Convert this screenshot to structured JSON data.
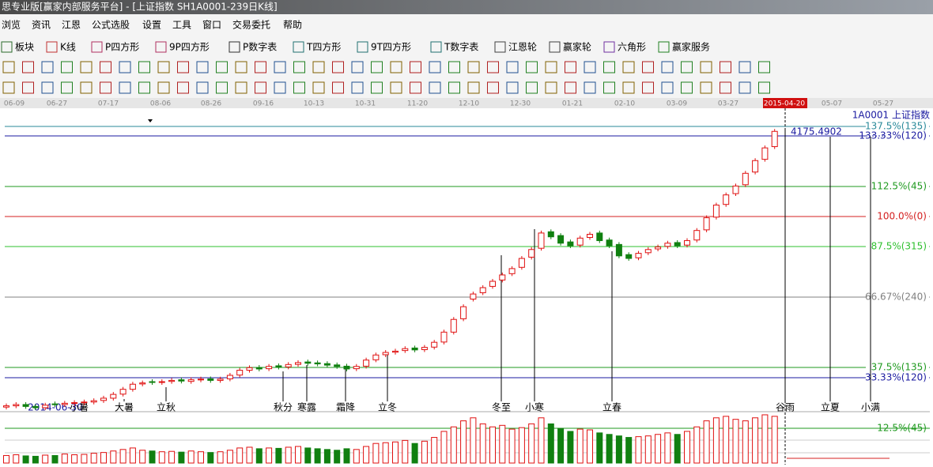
{
  "window": {
    "title": "思专业版[赢家内部服务平台] - [上证指数  SH1A0001-239日K线]"
  },
  "menu": [
    "浏览",
    "资讯",
    "江恩",
    "公式选股",
    "设置",
    "工具",
    "窗口",
    "交易委托",
    "帮助"
  ],
  "toolbar": [
    "板块",
    "K线",
    "P四方形",
    "9P四方形",
    "P数字表",
    "T四方形",
    "9T四方形",
    "T数字表",
    "江恩轮",
    "赢家轮",
    "六角形",
    "赢家服务"
  ],
  "dates": [
    "06-09",
    "06-27",
    "07-17",
    "08-06",
    "08-26",
    "09-16",
    "10-13",
    "10-31",
    "11-20",
    "12-10",
    "12-30",
    "01-21",
    "02-10",
    "03-09",
    "03-27",
    "2015-04-20",
    "05-07",
    "05-27"
  ],
  "symbol": "1A0001 上证指数",
  "price_note": "4175.4902",
  "levels": [
    {
      "label": "137.5%(135)",
      "color": "#2a8a9a"
    },
    {
      "label": "133.33%(120)",
      "color": "#1a1aa0"
    },
    {
      "label": "112.5%(45)",
      "color": "#1f9a1f"
    },
    {
      "label": "100.0%(0)",
      "color": "#d42020"
    },
    {
      "label": "87.5%(315)",
      "color": "#2fc02f"
    },
    {
      "label": "66.67%(240)",
      "color": "#808080"
    },
    {
      "label": "37.5%(135)",
      "color": "#1f9a1f"
    },
    {
      "label": "33.33%(120)",
      "color": "#1a1aa0"
    }
  ],
  "terms": [
    "2014-06-30",
    "小暑",
    "大暑",
    "立秋",
    "秋分",
    "寒露",
    "霜降",
    "立冬",
    "冬至",
    "小寒",
    "立春",
    "谷雨",
    "立夏",
    "小满"
  ],
  "volume_level": "12.5%(45)",
  "candles": {
    "ylim": [
      1980,
      4250
    ],
    "vlim": [
      0,
      650
    ],
    "open": [
      2010,
      2020,
      2030,
      2015,
      2005,
      2035,
      2030,
      2040,
      2048,
      2050,
      2062,
      2080,
      2112,
      2150,
      2192,
      2210,
      2205,
      2212,
      2225,
      2212,
      2226,
      2232,
      2220,
      2232,
      2262,
      2300,
      2322,
      2312,
      2335,
      2326,
      2346,
      2365,
      2358,
      2352,
      2342,
      2332,
      2312,
      2332,
      2382,
      2422,
      2442,
      2455,
      2475,
      2462,
      2482,
      2522,
      2600,
      2705,
      2860,
      2910,
      2960,
      3010,
      3060,
      3110,
      3190,
      3260,
      3390,
      3360,
      3310,
      3285,
      3345,
      3380,
      3325,
      3290,
      3210,
      3185,
      3225,
      3255,
      3275,
      3305,
      3285,
      3325,
      3405,
      3505,
      3605,
      3690,
      3760,
      3860,
      3960,
      4060
    ],
    "close": [
      2020,
      2030,
      2015,
      2005,
      2025,
      2030,
      2040,
      2045,
      2050,
      2060,
      2080,
      2110,
      2150,
      2190,
      2200,
      2205,
      2210,
      2220,
      2215,
      2225,
      2230,
      2220,
      2230,
      2260,
      2300,
      2320,
      2310,
      2330,
      2325,
      2345,
      2360,
      2355,
      2350,
      2340,
      2330,
      2310,
      2330,
      2380,
      2420,
      2440,
      2450,
      2470,
      2460,
      2480,
      2520,
      2600,
      2700,
      2800,
      2900,
      2950,
      3000,
      3050,
      3100,
      3180,
      3250,
      3380,
      3350,
      3300,
      3280,
      3340,
      3370,
      3320,
      3280,
      3200,
      3180,
      3220,
      3250,
      3270,
      3300,
      3280,
      3320,
      3400,
      3500,
      3600,
      3680,
      3750,
      3850,
      3950,
      4050,
      4180
    ],
    "volume": [
      100,
      110,
      95,
      90,
      105,
      100,
      120,
      110,
      115,
      130,
      140,
      160,
      180,
      200,
      170,
      160,
      150,
      155,
      145,
      160,
      150,
      140,
      150,
      170,
      200,
      210,
      190,
      200,
      195,
      210,
      220,
      200,
      190,
      180,
      170,
      190,
      180,
      220,
      260,
      270,
      280,
      300,
      260,
      290,
      340,
      420,
      480,
      560,
      600,
      520,
      480,
      500,
      450,
      470,
      520,
      600,
      520,
      460,
      420,
      450,
      440,
      400,
      380,
      360,
      340,
      350,
      360,
      380,
      400,
      380,
      420,
      480,
      560,
      600,
      620,
      580,
      560,
      600,
      640,
      620
    ]
  }
}
